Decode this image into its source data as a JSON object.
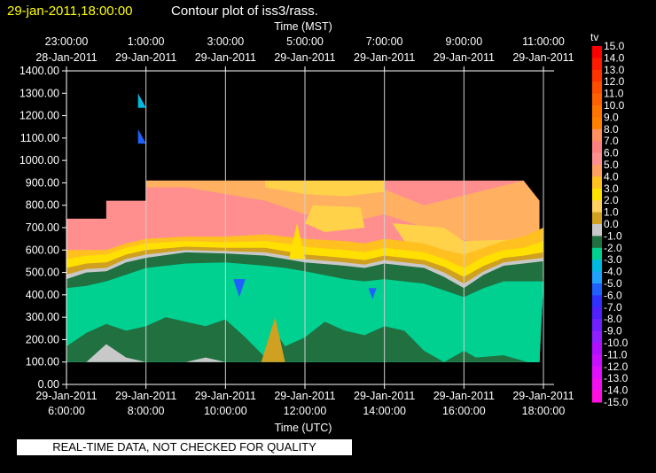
{
  "header": {
    "date": "29-jan-2011,18:00:00",
    "title": "Contour plot of iss3/rass."
  },
  "banner": "REAL-TIME DATA, NOT CHECKED FOR QUALITY",
  "chart_data": {
    "type": "heatmap",
    "title": "Contour plot of iss3/rass.",
    "top_axis_label": "Time (MST)",
    "xlabel": "Time (UTC)",
    "ylabel": "",
    "ylim": [
      0,
      1400
    ],
    "y_ticks": [
      "0.00",
      "100.00",
      "200.00",
      "300.00",
      "400.00",
      "500.00",
      "600.00",
      "700.00",
      "800.00",
      "900.00",
      "1000.00",
      "1100.00",
      "1200.00",
      "1300.00",
      "1400.00"
    ],
    "x_range_hours": [
      6,
      18
    ],
    "bottom_ticks": [
      {
        "t": 6,
        "date": "29-Jan-2011",
        "time": "6:00:00"
      },
      {
        "t": 8,
        "date": "29-Jan-2011",
        "time": "8:00:00"
      },
      {
        "t": 10,
        "date": "29-Jan-2011",
        "time": "10:00:00"
      },
      {
        "t": 12,
        "date": "29-Jan-2011",
        "time": "12:00:00"
      },
      {
        "t": 14,
        "date": "29-Jan-2011",
        "time": "14:00:00"
      },
      {
        "t": 16,
        "date": "29-Jan-2011",
        "time": "16:00:00"
      },
      {
        "t": 18,
        "date": "29-Jan-2011",
        "time": "18:00:00"
      }
    ],
    "top_ticks": [
      {
        "t": 6,
        "time": "23:00:00",
        "date": "28-Jan-2011"
      },
      {
        "t": 8,
        "time": "1:00:00",
        "date": "29-Jan-2011"
      },
      {
        "t": 10,
        "time": "3:00:00",
        "date": "29-Jan-2011"
      },
      {
        "t": 12,
        "time": "5:00:00",
        "date": "29-Jan-2011"
      },
      {
        "t": 14,
        "time": "7:00:00",
        "date": "29-Jan-2011"
      },
      {
        "t": 16,
        "time": "9:00:00",
        "date": "29-Jan-2011"
      },
      {
        "t": 18,
        "time": "11:00:00",
        "date": "29-Jan-2011"
      }
    ],
    "grid": true,
    "colorbar": {
      "title": "tv",
      "levels": [
        "15.0",
        "14.0",
        "13.0",
        "12.0",
        "11.0",
        "10.0",
        "9.0",
        "8.0",
        "7.0",
        "6.0",
        "5.0",
        "4.0",
        "3.0",
        "2.0",
        "1.0",
        "0.0",
        "-1.0",
        "-2.0",
        "-3.0",
        "-4.0",
        "-5.0",
        "-6.0",
        "-7.0",
        "-8.0",
        "-9.0",
        "-10.0",
        "-11.0",
        "-12.0",
        "-13.0",
        "-14.0",
        "-15.0"
      ],
      "colors": [
        "#ff0000",
        "#ff1a00",
        "#ff3300",
        "#ff4d00",
        "#ff6000",
        "#ff7300",
        "#ff8000",
        "#ff9060",
        "#ff8080",
        "#ff9090",
        "#ffa060",
        "#ffc020",
        "#ffe000",
        "#ffd060",
        "#d0a020",
        "#c8c8c8",
        "#207040",
        "#00d090",
        "#00b8e0",
        "#20a0ff",
        "#2060ff",
        "#3030ff",
        "#5020ff",
        "#7020ff",
        "#9020ff",
        "#b010ff",
        "#c810ff",
        "#e010ff",
        "#f010f0",
        "#ff10e0"
      ]
    },
    "bands": [
      {
        "color": "#c8c8c8",
        "top": [
          [
            6,
            100
          ],
          [
            6.5,
            100
          ],
          [
            7,
            180
          ],
          [
            7.5,
            120
          ],
          [
            8,
            100
          ],
          [
            9,
            100
          ],
          [
            9.5,
            120
          ],
          [
            10,
            100
          ],
          [
            16.5,
            100
          ],
          [
            18,
            100
          ]
        ]
      },
      {
        "color": "#207040",
        "top": [
          [
            6,
            170
          ],
          [
            6.5,
            230
          ],
          [
            7,
            270
          ],
          [
            7.5,
            240
          ],
          [
            8,
            260
          ],
          [
            8.5,
            300
          ],
          [
            9,
            280
          ],
          [
            9.5,
            260
          ],
          [
            10,
            290
          ],
          [
            10.5,
            210
          ],
          [
            11,
            120
          ],
          [
            11.2,
            250
          ],
          [
            11.5,
            170
          ],
          [
            12,
            210
          ],
          [
            12.5,
            280
          ],
          [
            13,
            240
          ],
          [
            13.5,
            220
          ],
          [
            14,
            260
          ],
          [
            14.5,
            240
          ],
          [
            15,
            150
          ],
          [
            15.5,
            100
          ],
          [
            16,
            150
          ],
          [
            16.3,
            120
          ],
          [
            17,
            130
          ],
          [
            17.6,
            100
          ],
          [
            18,
            100
          ]
        ]
      },
      {
        "color": "#00d090",
        "top": [
          [
            6,
            430
          ],
          [
            6.5,
            440
          ],
          [
            7,
            460
          ],
          [
            7.5,
            490
          ],
          [
            8,
            520
          ],
          [
            8.5,
            530
          ],
          [
            9,
            540
          ],
          [
            10,
            545
          ],
          [
            11,
            530
          ],
          [
            11.5,
            520
          ],
          [
            12,
            505
          ],
          [
            13,
            470
          ],
          [
            13.5,
            460
          ],
          [
            14,
            470
          ],
          [
            15,
            450
          ],
          [
            15.5,
            420
          ],
          [
            16,
            390
          ],
          [
            16.5,
            430
          ],
          [
            17,
            460
          ],
          [
            17.5,
            460
          ],
          [
            18,
            460
          ]
        ]
      },
      {
        "color": "#00b8e0",
        "top": [
          [
            6,
            400
          ],
          [
            6.5,
            420
          ],
          [
            7,
            445
          ],
          [
            7.5,
            470
          ],
          [
            8,
            500
          ],
          [
            8.5,
            520
          ],
          [
            9,
            530
          ],
          [
            10,
            535
          ],
          [
            11,
            515
          ],
          [
            11.5,
            505
          ],
          [
            12,
            490
          ],
          [
            13,
            450
          ],
          [
            13.5,
            445
          ],
          [
            14,
            455
          ],
          [
            15,
            430
          ],
          [
            15.5,
            395
          ],
          [
            16,
            370
          ],
          [
            16.5,
            415
          ],
          [
            17,
            450
          ],
          [
            17.5,
            450
          ],
          [
            18,
            450
          ]
        ]
      },
      {
        "color": "#207040",
        "top": [
          [
            6,
            470
          ],
          [
            6.5,
            500
          ],
          [
            7,
            505
          ],
          [
            7.5,
            545
          ],
          [
            8,
            565
          ],
          [
            9,
            590
          ],
          [
            10,
            585
          ],
          [
            11,
            575
          ],
          [
            11.5,
            560
          ],
          [
            12,
            545
          ],
          [
            13,
            530
          ],
          [
            13.5,
            520
          ],
          [
            14,
            540
          ],
          [
            15,
            520
          ],
          [
            15.5,
            480
          ],
          [
            16,
            430
          ],
          [
            16.5,
            490
          ],
          [
            17,
            530
          ],
          [
            17.5,
            540
          ],
          [
            18,
            550
          ]
        ]
      },
      {
        "color": "#c8c8c8",
        "top": [
          [
            6,
            490
          ],
          [
            6.5,
            515
          ],
          [
            7,
            520
          ],
          [
            7.5,
            560
          ],
          [
            8,
            580
          ],
          [
            9,
            600
          ],
          [
            10,
            595
          ],
          [
            11,
            590
          ],
          [
            11.5,
            575
          ],
          [
            12,
            560
          ],
          [
            13,
            545
          ],
          [
            13.5,
            535
          ],
          [
            14,
            555
          ],
          [
            15,
            535
          ],
          [
            15.5,
            500
          ],
          [
            16,
            450
          ],
          [
            16.5,
            505
          ],
          [
            17,
            545
          ],
          [
            17.5,
            555
          ],
          [
            18,
            565
          ]
        ]
      },
      {
        "color": "#d0a020",
        "top": [
          [
            6,
            520
          ],
          [
            6.5,
            540
          ],
          [
            7,
            545
          ],
          [
            7.5,
            580
          ],
          [
            8,
            600
          ],
          [
            9,
            615
          ],
          [
            10,
            610
          ],
          [
            11,
            610
          ],
          [
            11.5,
            595
          ],
          [
            12,
            580
          ],
          [
            13,
            565
          ],
          [
            13.5,
            555
          ],
          [
            14,
            575
          ],
          [
            15,
            555
          ],
          [
            15.5,
            525
          ],
          [
            16,
            480
          ],
          [
            16.5,
            530
          ],
          [
            17,
            565
          ],
          [
            17.5,
            575
          ],
          [
            18,
            590
          ]
        ]
      },
      {
        "color": "#ffe000",
        "top": [
          [
            6,
            560
          ],
          [
            6.5,
            575
          ],
          [
            7,
            580
          ],
          [
            7.5,
            610
          ],
          [
            8,
            630
          ],
          [
            9,
            640
          ],
          [
            10,
            635
          ],
          [
            11,
            640
          ],
          [
            11.5,
            630
          ],
          [
            12,
            615
          ],
          [
            13,
            600
          ],
          [
            13.5,
            590
          ],
          [
            14,
            610
          ],
          [
            15,
            590
          ],
          [
            15.5,
            560
          ],
          [
            16,
            520
          ],
          [
            16.5,
            570
          ],
          [
            17,
            600
          ],
          [
            17.5,
            610
          ],
          [
            18,
            640
          ]
        ]
      },
      {
        "color": "#ffc020",
        "top": [
          [
            6,
            600
          ],
          [
            6.5,
            600
          ],
          [
            7,
            600
          ],
          [
            7.5,
            630
          ],
          [
            8,
            650
          ],
          [
            9,
            660
          ],
          [
            10,
            660
          ],
          [
            11,
            670
          ],
          [
            11.5,
            660
          ],
          [
            12,
            650
          ],
          [
            13,
            640
          ],
          [
            13.5,
            630
          ],
          [
            14,
            650
          ],
          [
            15,
            630
          ],
          [
            15.5,
            600
          ],
          [
            16,
            580
          ],
          [
            16.5,
            610
          ],
          [
            17,
            640
          ],
          [
            17.5,
            660
          ],
          [
            18,
            700
          ]
        ]
      }
    ]
  }
}
